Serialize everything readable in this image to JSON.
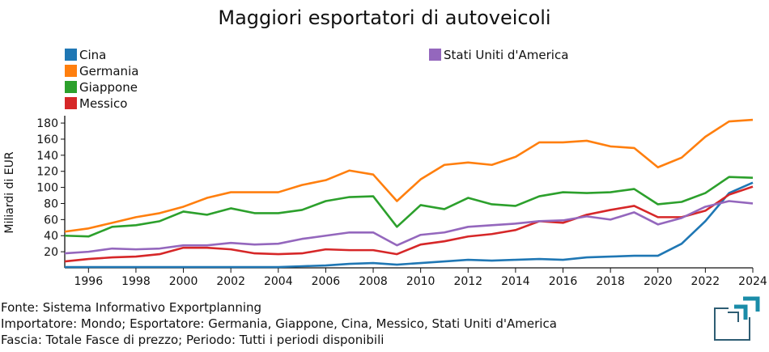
{
  "chart_data": {
    "type": "line",
    "title": "Maggiori esportatori di autoveicoli",
    "xlabel": "",
    "ylabel": "Miliardi di EUR",
    "xlim": [
      1995,
      2024
    ],
    "ylim": [
      0,
      185
    ],
    "x_ticks": [
      1996,
      1998,
      2000,
      2002,
      2004,
      2006,
      2008,
      2010,
      2012,
      2014,
      2016,
      2018,
      2020,
      2022,
      2024
    ],
    "y_ticks": [
      20,
      40,
      60,
      80,
      100,
      120,
      140,
      160,
      180
    ],
    "legend_placement": "top-left",
    "x": [
      1995,
      1996,
      1997,
      1998,
      1999,
      2000,
      2001,
      2002,
      2003,
      2004,
      2005,
      2006,
      2007,
      2008,
      2009,
      2010,
      2011,
      2012,
      2013,
      2014,
      2015,
      2016,
      2017,
      2018,
      2019,
      2020,
      2021,
      2022,
      2023,
      2024
    ],
    "series": [
      {
        "name": "Cina",
        "color": "#1f77b4",
        "values": [
          1,
          1,
          1,
          1,
          1,
          1,
          1,
          1,
          1,
          1,
          2,
          3,
          5,
          6,
          4,
          6,
          8,
          10,
          9,
          10,
          11,
          10,
          13,
          14,
          15,
          15,
          30,
          58,
          93,
          106
        ]
      },
      {
        "name": "Germania",
        "color": "#ff7f0e",
        "values": [
          45,
          49,
          56,
          63,
          68,
          76,
          87,
          94,
          94,
          94,
          103,
          109,
          121,
          116,
          83,
          110,
          128,
          131,
          128,
          138,
          156,
          156,
          158,
          151,
          149,
          125,
          137,
          163,
          182,
          184
        ]
      },
      {
        "name": "Giappone",
        "color": "#2ca02c",
        "values": [
          40,
          39,
          51,
          53,
          58,
          70,
          66,
          74,
          68,
          68,
          72,
          83,
          88,
          89,
          51,
          78,
          73,
          87,
          79,
          77,
          89,
          94,
          93,
          94,
          98,
          79,
          82,
          93,
          113,
          112
        ]
      },
      {
        "name": "Messico",
        "color": "#d62728",
        "values": [
          8,
          11,
          13,
          14,
          17,
          25,
          25,
          23,
          18,
          17,
          18,
          23,
          22,
          22,
          17,
          29,
          33,
          39,
          42,
          47,
          58,
          56,
          66,
          72,
          77,
          63,
          63,
          71,
          91,
          101
        ]
      },
      {
        "name": "Stati Uniti d'America",
        "color": "#9467bd",
        "values": [
          18,
          20,
          24,
          23,
          24,
          28,
          28,
          31,
          29,
          30,
          36,
          40,
          44,
          44,
          28,
          41,
          44,
          51,
          53,
          55,
          58,
          59,
          64,
          60,
          69,
          54,
          62,
          76,
          83,
          80
        ]
      }
    ]
  },
  "footer": {
    "source": "Fonte: Sistema Informativo Exportplanning",
    "importer": "Importatore: Mondo; Esportatore: Germania, Giappone, Cina, Messico, Stati Uniti d'America",
    "range": "Fascia: Totale Fasce di prezzo; Periodo: Tutti i periodi disponibili"
  }
}
